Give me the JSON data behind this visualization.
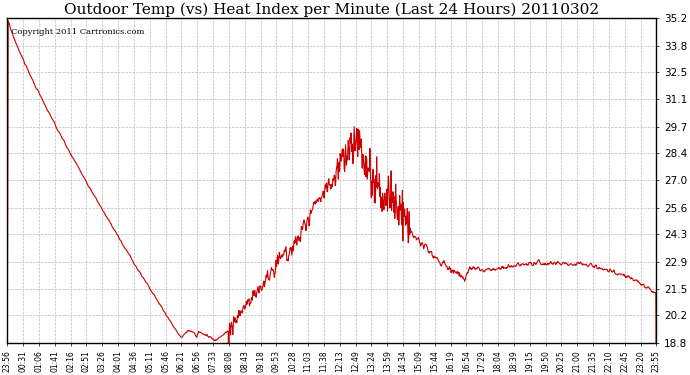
{
  "title": "Outdoor Temp (vs) Heat Index per Minute (Last 24 Hours) 20110302",
  "copyright_text": "Copyright 2011 Cartronics.com",
  "line_color": "#cc0000",
  "background_color": "#ffffff",
  "grid_color": "#bbbbbb",
  "title_fontsize": 11,
  "ylim": [
    18.8,
    35.2
  ],
  "yticks": [
    18.8,
    20.2,
    21.5,
    22.9,
    24.3,
    25.6,
    27.0,
    28.4,
    29.7,
    31.1,
    32.5,
    33.8,
    35.2
  ],
  "xtick_labels": [
    "23:56",
    "00:31",
    "01:06",
    "01:41",
    "02:16",
    "02:51",
    "03:26",
    "04:01",
    "04:36",
    "05:11",
    "05:46",
    "06:21",
    "06:56",
    "07:33",
    "08:08",
    "08:43",
    "09:18",
    "09:53",
    "10:28",
    "11:03",
    "11:38",
    "12:13",
    "12:49",
    "13:24",
    "13:59",
    "14:34",
    "15:09",
    "15:44",
    "16:19",
    "16:54",
    "17:29",
    "18:04",
    "18:39",
    "19:15",
    "19:50",
    "20:25",
    "21:00",
    "21:35",
    "22:10",
    "22:45",
    "23:20",
    "23:55"
  ],
  "n_points": 1440,
  "seed": 17
}
